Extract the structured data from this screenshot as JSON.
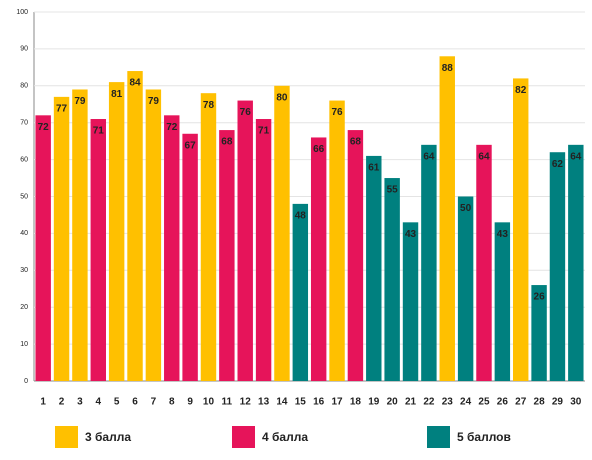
{
  "chart_data": {
    "type": "bar",
    "categories": [
      "1",
      "2",
      "3",
      "4",
      "5",
      "6",
      "7",
      "8",
      "9",
      "10",
      "11",
      "12",
      "13",
      "14",
      "15",
      "16",
      "17",
      "18",
      "19",
      "20",
      "21",
      "22",
      "23",
      "24",
      "25",
      "26",
      "27",
      "28",
      "29",
      "30"
    ],
    "series": [
      {
        "name": "3 балла",
        "color": "#ffc000",
        "values": [
          null,
          77,
          79,
          null,
          81,
          84,
          79,
          null,
          null,
          78,
          null,
          null,
          null,
          80,
          null,
          null,
          76,
          null,
          null,
          null,
          null,
          null,
          88,
          null,
          null,
          null,
          82,
          null,
          null,
          null
        ]
      },
      {
        "name": "4 балла",
        "color": "#e6145a",
        "values": [
          72,
          null,
          null,
          71,
          null,
          null,
          null,
          72,
          67,
          null,
          68,
          76,
          71,
          null,
          null,
          66,
          null,
          68,
          null,
          null,
          null,
          null,
          null,
          null,
          64,
          null,
          null,
          null,
          null,
          null
        ]
      },
      {
        "name": "5 баллов",
        "color": "#00807f",
        "values": [
          null,
          null,
          null,
          null,
          null,
          null,
          null,
          null,
          null,
          null,
          null,
          null,
          null,
          null,
          48,
          null,
          null,
          null,
          61,
          55,
          43,
          64,
          null,
          50,
          null,
          43,
          null,
          26,
          62,
          64
        ]
      }
    ],
    "ylim": [
      0,
      100
    ],
    "yticks": [
      0,
      10,
      20,
      30,
      40,
      50,
      60,
      70,
      80,
      90,
      100
    ],
    "grid": true
  }
}
